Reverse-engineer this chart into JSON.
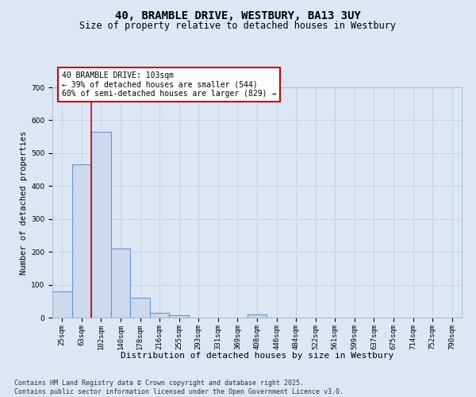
{
  "title": "40, BRAMBLE DRIVE, WESTBURY, BA13 3UY",
  "subtitle": "Size of property relative to detached houses in Westbury",
  "xlabel": "Distribution of detached houses by size in Westbury",
  "ylabel": "Number of detached properties",
  "bin_labels": [
    "25sqm",
    "63sqm",
    "102sqm",
    "140sqm",
    "178sqm",
    "216sqm",
    "255sqm",
    "293sqm",
    "331sqm",
    "369sqm",
    "408sqm",
    "446sqm",
    "484sqm",
    "522sqm",
    "561sqm",
    "599sqm",
    "637sqm",
    "675sqm",
    "714sqm",
    "752sqm",
    "790sqm"
  ],
  "bar_heights": [
    80,
    465,
    565,
    210,
    60,
    15,
    8,
    0,
    0,
    0,
    10,
    0,
    0,
    0,
    0,
    0,
    0,
    0,
    0,
    0,
    0
  ],
  "bar_color": "#ccd9ee",
  "bar_edge_color": "#6699cc",
  "vline_x": 2.0,
  "vline_color": "#cc0000",
  "annotation_text": "40 BRAMBLE DRIVE: 103sqm\n← 39% of detached houses are smaller (544)\n60% of semi-detached houses are larger (829) →",
  "annotation_box_color": "#cc0000",
  "ylim": [
    0,
    700
  ],
  "yticks": [
    0,
    100,
    200,
    300,
    400,
    500,
    600,
    700
  ],
  "footer_line1": "Contains HM Land Registry data © Crown copyright and database right 2025.",
  "footer_line2": "Contains public sector information licensed under the Open Government Licence v3.0.",
  "bg_color": "#dde6f5",
  "plot_bg_color": "#dde6f5",
  "grid_color": "#c8d4e8",
  "title_fontsize": 10,
  "subtitle_fontsize": 8.5,
  "axis_label_fontsize": 7.5,
  "tick_fontsize": 6.5,
  "annotation_fontsize": 7,
  "footer_fontsize": 6
}
